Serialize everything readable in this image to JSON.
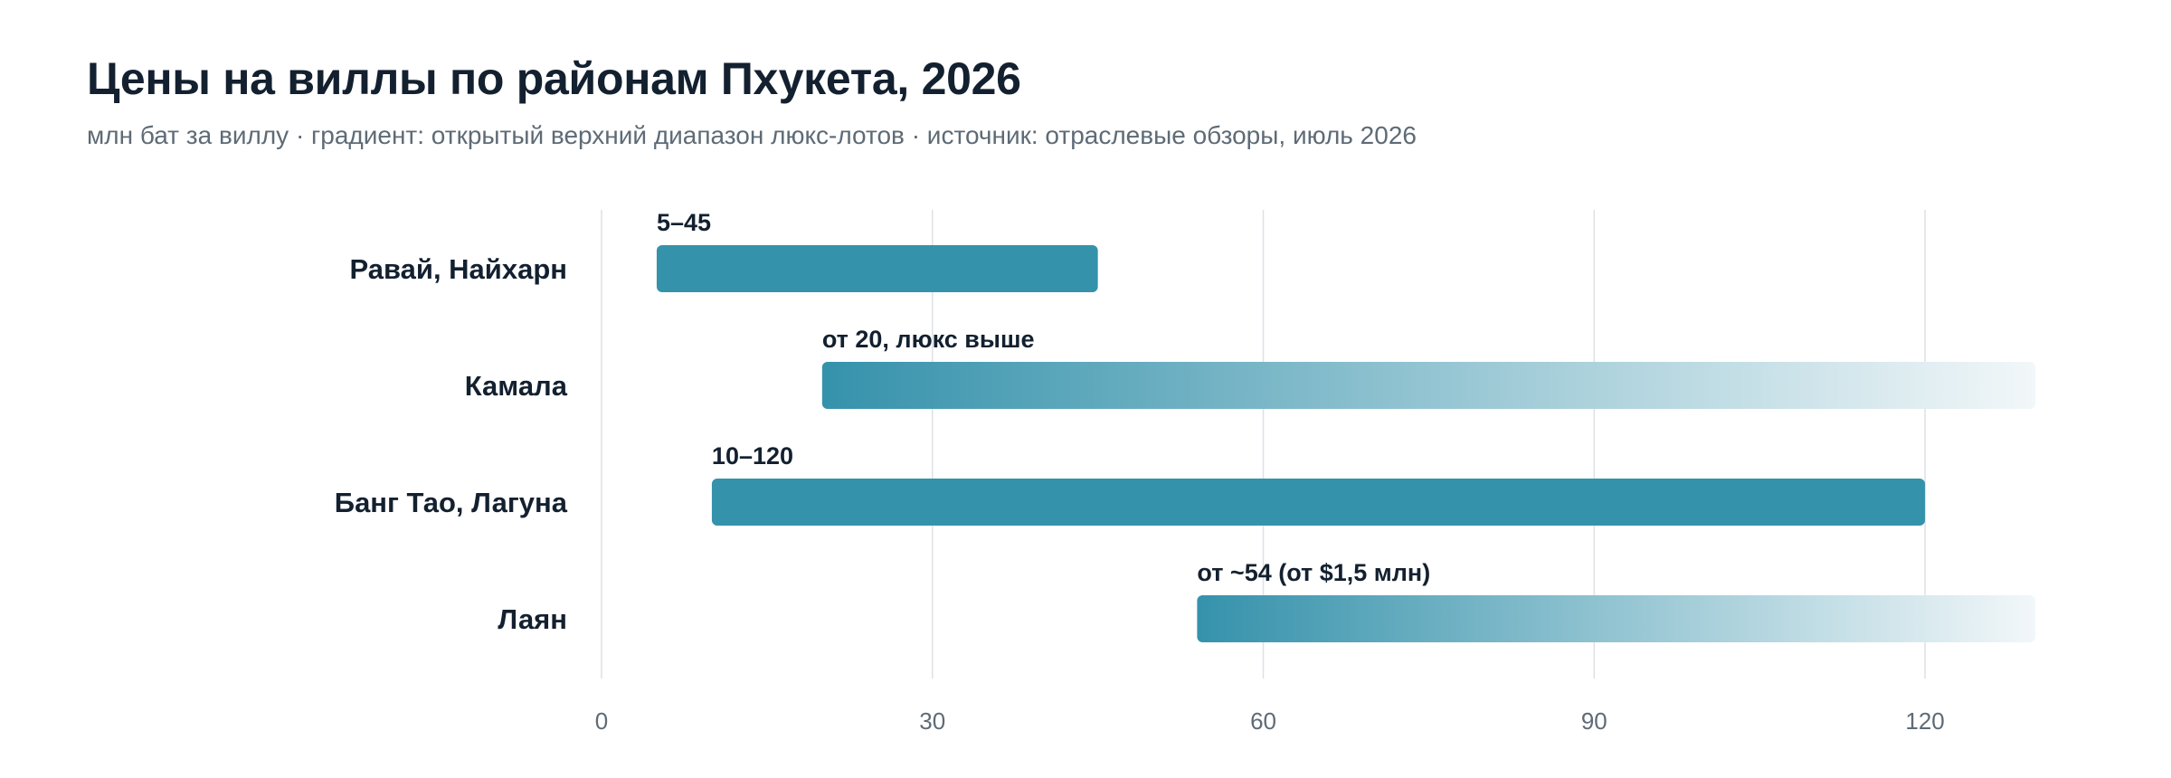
{
  "title": "Цены на виллы по районам Пхукета, 2026",
  "subtitle": "млн бат за виллу · градиент: открытый верхний диапазон люкс-лотов · источник: отраслевые обзоры, июль 2026",
  "chart_data": {
    "type": "bar",
    "orientation": "horizontal",
    "subtype": "range",
    "title": "Цены на виллы по районам Пхукета, 2026",
    "subtitle": "млн бат за виллу · градиент: открытый верхний диапазон люкс-лотов · источник: отраслевые обзоры, июль 2026",
    "xlabel": "",
    "ylabel": "",
    "xlim": [
      0,
      130
    ],
    "xticks": [
      0,
      30,
      60,
      90,
      120
    ],
    "grid": true,
    "legend": "none",
    "colors": {
      "bar": "#3592ab",
      "gradient_end": "#f2f7f9",
      "grid": "#dde1e5",
      "text": "#13202f",
      "muted": "#5e6b76"
    },
    "categories": [
      "Равай, Найхарн",
      "Камала",
      "Банг Тао, Лагуна",
      "Лаян"
    ],
    "bars": [
      {
        "category": "Равай, Найхарн",
        "min": 5,
        "max": 45,
        "open_ended": false,
        "label": "5–45"
      },
      {
        "category": "Камала",
        "min": 20,
        "max": 130,
        "open_ended": true,
        "label": "от 20, люкс выше"
      },
      {
        "category": "Банг Тао, Лагуна",
        "min": 10,
        "max": 120,
        "open_ended": false,
        "label": "10–120"
      },
      {
        "category": "Лаян",
        "min": 54,
        "max": 130,
        "open_ended": true,
        "label": "от ~54 (от $1,5 млн)"
      }
    ]
  }
}
